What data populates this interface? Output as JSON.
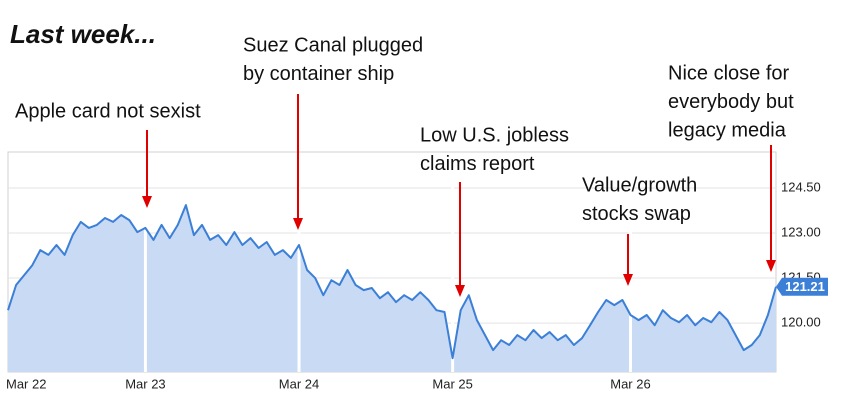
{
  "chart_data": {
    "type": "line",
    "title": "Last week...",
    "categories": [
      "Mar 22",
      null,
      null,
      null,
      null,
      null,
      null,
      null,
      null,
      null,
      null,
      null,
      null,
      null,
      null,
      null,
      null,
      "Mar 23",
      null,
      null,
      null,
      null,
      null,
      null,
      null,
      null,
      null,
      null,
      null,
      null,
      null,
      null,
      null,
      null,
      null,
      null,
      "Mar 24",
      null,
      null,
      null,
      null,
      null,
      null,
      null,
      null,
      null,
      null,
      null,
      null,
      null,
      null,
      null,
      null,
      null,
      null,
      "Mar 25",
      null,
      null,
      null,
      null,
      null,
      null,
      null,
      null,
      null,
      null,
      null,
      null,
      null,
      null,
      null,
      null,
      null,
      null,
      null,
      null,
      null,
      "Mar 26",
      null,
      null,
      null,
      null,
      null,
      null,
      null,
      null,
      null,
      null,
      null,
      null,
      null,
      null,
      null,
      null,
      null,
      null
    ],
    "values": [
      120.43,
      121.27,
      121.6,
      121.93,
      122.43,
      122.27,
      122.6,
      122.27,
      122.93,
      123.37,
      123.17,
      123.27,
      123.5,
      123.37,
      123.6,
      123.43,
      123.03,
      123.17,
      122.77,
      123.27,
      122.83,
      123.27,
      123.93,
      122.93,
      123.27,
      122.77,
      122.93,
      122.6,
      123.03,
      122.6,
      122.83,
      122.5,
      122.7,
      122.27,
      122.43,
      122.17,
      122.6,
      121.77,
      121.5,
      120.93,
      121.43,
      121.27,
      121.77,
      121.27,
      121.1,
      121.17,
      120.83,
      121.03,
      120.7,
      120.93,
      120.77,
      121.03,
      120.77,
      120.43,
      120.37,
      118.83,
      120.43,
      120.93,
      120.1,
      119.6,
      119.1,
      119.43,
      119.27,
      119.6,
      119.43,
      119.77,
      119.5,
      119.7,
      119.43,
      119.6,
      119.27,
      119.5,
      119.93,
      120.37,
      120.77,
      120.6,
      120.77,
      120.27,
      120.1,
      120.27,
      119.93,
      120.43,
      120.17,
      120.03,
      120.27,
      119.93,
      120.17,
      120.03,
      120.37,
      120.1,
      119.6,
      119.1,
      119.27,
      119.6,
      120.27,
      121.21
    ],
    "color": "#3b7fd6",
    "area_color": "#c9daf4",
    "ylim": [
      118.37,
      125.7
    ],
    "yticks": [
      {
        "value": 120,
        "label": "120.00"
      },
      {
        "value": 121.5,
        "label": "121.50"
      },
      {
        "value": 123,
        "label": "123.00"
      },
      {
        "value": 124.5,
        "label": "124.50"
      }
    ],
    "grid": true,
    "annotations": [
      [
        "Apple card not sexist"
      ],
      [
        "Suez Canal plugged",
        "by container ship"
      ],
      [
        "Low U.S. jobless",
        "claims report"
      ],
      [
        "Value/growth",
        "stocks swap"
      ],
      [
        "Nice close for",
        "everybody but",
        "legacy media"
      ]
    ]
  }
}
